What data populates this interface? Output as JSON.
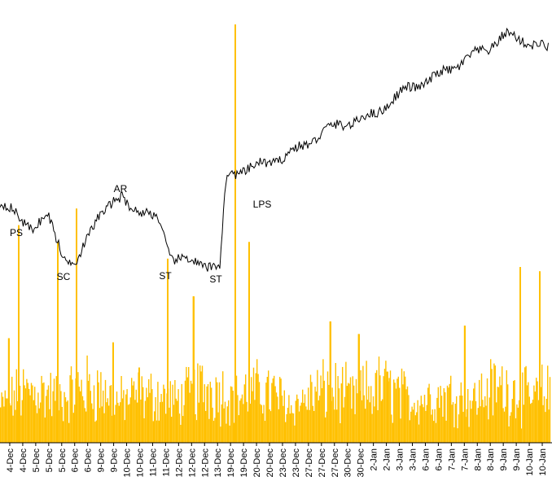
{
  "chart_data": {
    "type": "line+bar",
    "title": "",
    "xlabel": "",
    "ylabel": "",
    "grid": false,
    "legend": "none",
    "colors": {
      "price_line": "#000000",
      "volume_bars": "#ffc000",
      "axis": "#000000",
      "background": "#ffffff"
    },
    "x_tick_labels": [
      "4-Dec",
      "4-Dec",
      "5-Dec",
      "5-Dec",
      "5-Dec",
      "6-Dec",
      "6-Dec",
      "9-Dec",
      "9-Dec",
      "10-Dec",
      "10-Dec",
      "11-Dec",
      "11-Dec",
      "12-Dec",
      "12-Dec",
      "12-Dec",
      "13-Dec",
      "19-Dec",
      "19-Dec",
      "20-Dec",
      "20-Dec",
      "23-Dec",
      "23-Dec",
      "27-Dec",
      "27-Dec",
      "27-Dec",
      "30-Dec",
      "30-Dec",
      "2-Jan",
      "2-Jan",
      "3-Jan",
      "3-Jan",
      "6-Jan",
      "6-Jan",
      "7-Jan",
      "7-Jan",
      "8-Jan",
      "8-Jan",
      "9-Jan",
      "9-Jan",
      "10-Jan",
      "10-Jan"
    ],
    "price_series": {
      "name": "",
      "points": [
        [
          0,
          70
        ],
        [
          20,
          65
        ],
        [
          40,
          58
        ],
        [
          60,
          63
        ],
        [
          80,
          42
        ],
        [
          95,
          40
        ],
        [
          120,
          65
        ],
        [
          150,
          73
        ],
        [
          170,
          67
        ],
        [
          195,
          62
        ],
        [
          210,
          43
        ],
        [
          240,
          40
        ],
        [
          270,
          38
        ],
        [
          278,
          84
        ],
        [
          300,
          88
        ],
        [
          330,
          91
        ],
        [
          370,
          99
        ],
        [
          400,
          108
        ],
        [
          420,
          111
        ],
        [
          440,
          113
        ],
        [
          460,
          116
        ],
        [
          480,
          123
        ],
        [
          500,
          129
        ],
        [
          530,
          134
        ],
        [
          560,
          141
        ],
        [
          580,
          146
        ],
        [
          600,
          150
        ],
        [
          620,
          157
        ],
        [
          640,
          154
        ],
        [
          660,
          152
        ],
        [
          678,
          148
        ]
      ]
    },
    "volume_series": {
      "name": "",
      "bars": [
        [
          10,
          25
        ],
        [
          22,
          52
        ],
        [
          70,
          48
        ],
        [
          93,
          56
        ],
        [
          138,
          24
        ],
        [
          170,
          18
        ],
        [
          205,
          44
        ],
        [
          237,
          35
        ],
        [
          288,
          100
        ],
        [
          305,
          48
        ],
        [
          405,
          29
        ],
        [
          440,
          26
        ],
        [
          475,
          17
        ],
        [
          570,
          28
        ],
        [
          638,
          42
        ],
        [
          662,
          41
        ]
      ],
      "baseline_level": 10
    },
    "annotations": [
      {
        "label": "PS",
        "x": 20
      },
      {
        "label": "SC",
        "x": 78
      },
      {
        "label": "AR",
        "x": 148
      },
      {
        "label": "ST",
        "x": 203
      },
      {
        "label": "ST",
        "x": 265
      },
      {
        "label": "LPS",
        "x": 322
      }
    ]
  }
}
